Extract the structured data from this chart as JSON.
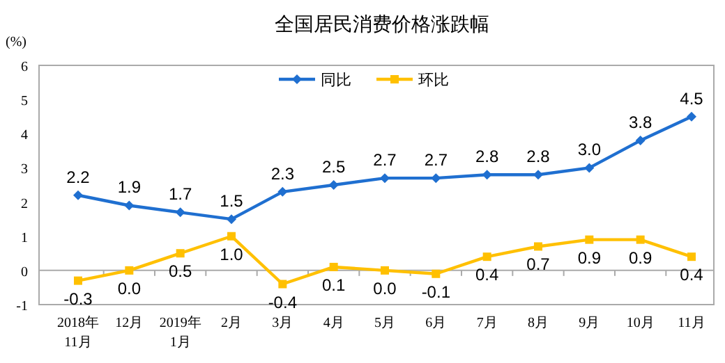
{
  "chart_data": {
    "type": "line",
    "title": "全国居民消费价格涨跌幅",
    "ylabel": "(%)",
    "categories": [
      "2018年\n11月",
      "12月",
      "2019年\n1月",
      "2月",
      "3月",
      "4月",
      "5月",
      "6月",
      "7月",
      "8月",
      "9月",
      "10月",
      "11月"
    ],
    "series": [
      {
        "name": "同比",
        "color": "#1f6fd0",
        "marker": "diamond",
        "values": [
          2.2,
          1.9,
          1.7,
          1.5,
          2.3,
          2.5,
          2.7,
          2.7,
          2.8,
          2.8,
          3.0,
          3.8,
          4.5
        ],
        "value_labels": [
          "2.2",
          "1.9",
          "1.7",
          "1.5",
          "2.3",
          "2.5",
          "2.7",
          "2.7",
          "2.8",
          "2.8",
          "3.0",
          "3.8",
          "4.5"
        ]
      },
      {
        "name": "环比",
        "color": "#ffc000",
        "marker": "square",
        "values": [
          -0.3,
          0.0,
          0.5,
          1.0,
          -0.4,
          0.1,
          0.0,
          -0.1,
          0.4,
          0.7,
          0.9,
          0.9,
          0.4
        ],
        "value_labels": [
          "-0.3",
          "0.0",
          "0.5",
          "1.0",
          "-0.4",
          "0.1",
          "0.0",
          "-0.1",
          "0.4",
          "0.7",
          "0.9",
          "0.9",
          "0.4"
        ]
      }
    ],
    "ylim": [
      -1,
      6
    ],
    "yticks": [
      -1,
      0,
      1,
      2,
      3,
      4,
      5,
      6
    ],
    "legend": "top",
    "line_style": "solid"
  }
}
